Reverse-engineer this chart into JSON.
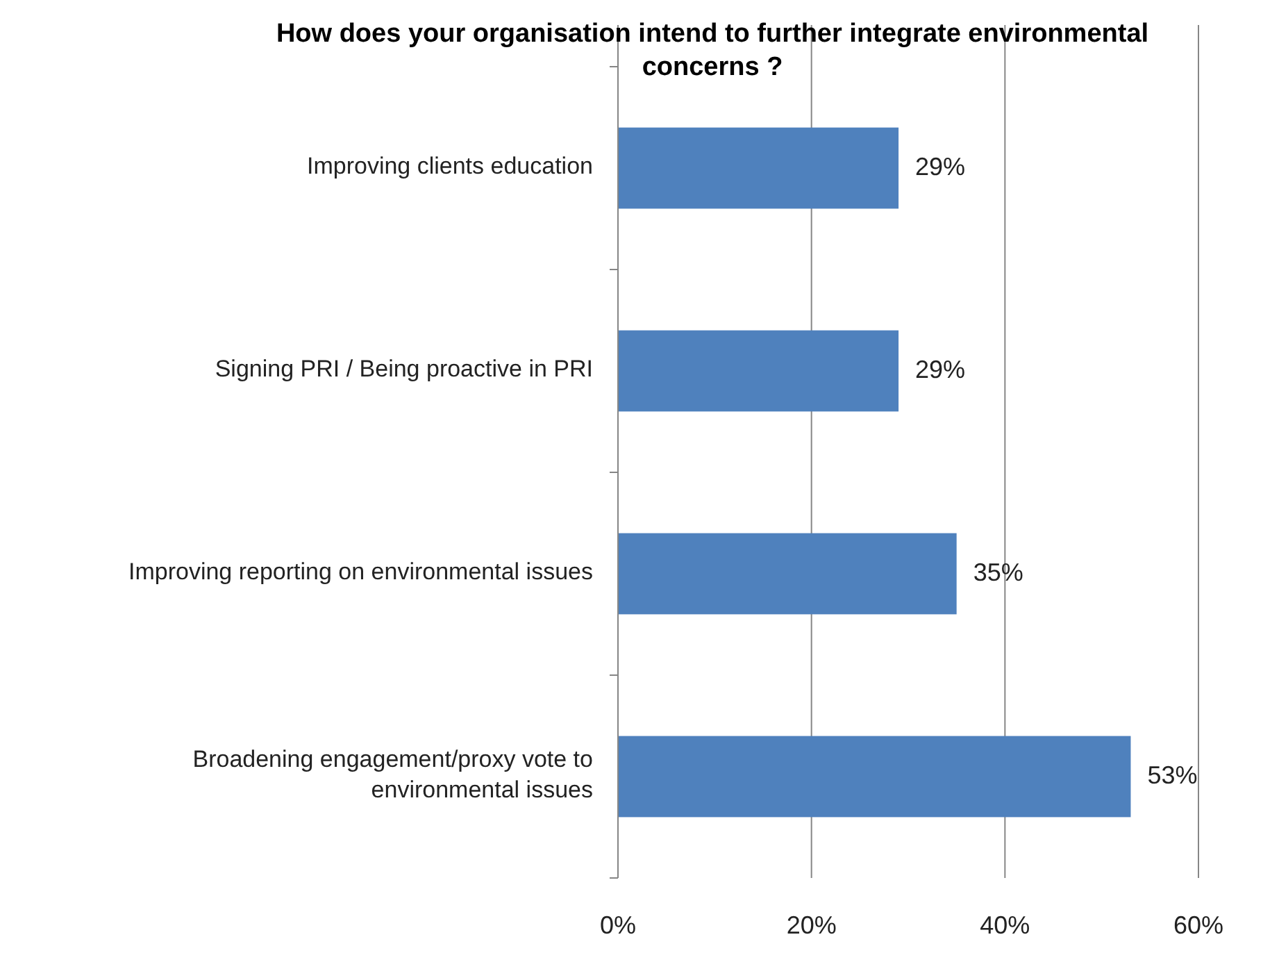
{
  "chart_data": {
    "type": "bar",
    "orientation": "horizontal",
    "title": "How does your organisation intend to further integrate environmental concerns ?",
    "categories": [
      "Improving  clients education",
      "Signing PRI / Being proactive in PRI",
      "Improving reporting on environmental issues",
      "Broadening engagement/proxy vote to environmental issues"
    ],
    "values": [
      29,
      29,
      35,
      53
    ],
    "value_labels": [
      "29%",
      "29%",
      "35%",
      "53%"
    ],
    "color": "#4f81bd",
    "xlim": [
      0,
      60
    ],
    "xticks": [
      {
        "value": 0,
        "label": "0%"
      },
      {
        "value": 20,
        "label": "20%"
      },
      {
        "value": 40,
        "label": "40%"
      },
      {
        "value": 60,
        "label": "60%"
      }
    ],
    "grid": "x"
  }
}
